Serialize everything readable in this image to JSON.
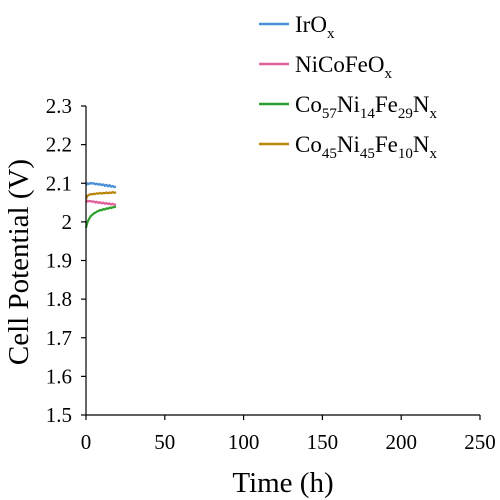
{
  "chart_data": {
    "type": "line",
    "title": "",
    "xlabel": "Time (h)",
    "ylabel": "Cell Potential (V)",
    "xlim": [
      0,
      250
    ],
    "ylim": [
      1.5,
      2.3
    ],
    "xticks": [
      0,
      50,
      100,
      150,
      200,
      250
    ],
    "yticks": [
      1.5,
      1.6,
      1.7,
      1.8,
      1.9,
      2.0,
      2.1,
      2.2,
      2.3
    ],
    "ytick_labels": [
      "1.5",
      "1.6",
      "1.7",
      "1.8",
      "1.9",
      "2",
      "2.1",
      "2.2",
      "2.3"
    ],
    "grid": false,
    "legend_position": "top-right",
    "series": [
      {
        "name": "IrOx",
        "name_parts": [
          {
            "t": "IrO"
          },
          {
            "t": "x",
            "sub": true
          }
        ],
        "color": "#4a90d9",
        "x": [
          0,
          1,
          2,
          3,
          4,
          5,
          6,
          7,
          8,
          9,
          10,
          11,
          12,
          13,
          14,
          15,
          16,
          17,
          18,
          19
        ],
        "y": [
          2.095,
          2.1,
          2.098,
          2.101,
          2.099,
          2.1,
          2.097,
          2.099,
          2.096,
          2.098,
          2.095,
          2.097,
          2.093,
          2.096,
          2.092,
          2.095,
          2.091,
          2.093,
          2.09,
          2.092
        ]
      },
      {
        "name": "NiCoFeOx",
        "name_parts": [
          {
            "t": "NiCoFeO"
          },
          {
            "t": "x",
            "sub": true
          }
        ],
        "color": "#e0609a",
        "x": [
          0,
          1,
          2,
          3,
          4,
          5,
          6,
          7,
          8,
          9,
          10,
          11,
          12,
          13,
          14,
          15,
          16,
          17,
          18,
          19
        ],
        "y": [
          2.05,
          2.055,
          2.053,
          2.054,
          2.052,
          2.053,
          2.05,
          2.052,
          2.049,
          2.051,
          2.048,
          2.05,
          2.047,
          2.049,
          2.046,
          2.048,
          2.045,
          2.047,
          2.044,
          2.046
        ]
      },
      {
        "name": "Co57Ni14Fe29Nx",
        "name_parts": [
          {
            "t": "Co"
          },
          {
            "t": "57",
            "sub": true
          },
          {
            "t": "Ni"
          },
          {
            "t": "14",
            "sub": true
          },
          {
            "t": "Fe"
          },
          {
            "t": "29",
            "sub": true
          },
          {
            "t": "N"
          },
          {
            "t": "x",
            "sub": true
          }
        ],
        "color": "#2ca02c",
        "x": [
          0,
          1,
          2,
          3,
          4,
          5,
          6,
          7,
          8,
          9,
          10,
          11,
          12,
          13,
          14,
          15,
          16,
          17,
          18,
          19
        ],
        "y": [
          1.985,
          2.0,
          2.008,
          2.015,
          2.018,
          2.022,
          2.024,
          2.027,
          2.028,
          2.031,
          2.03,
          2.033,
          2.032,
          2.035,
          2.034,
          2.037,
          2.036,
          2.038,
          2.038,
          2.04
        ]
      },
      {
        "name": "Co45Ni45Fe10Nx",
        "name_parts": [
          {
            "t": "Co"
          },
          {
            "t": "45",
            "sub": true
          },
          {
            "t": "Ni"
          },
          {
            "t": "45",
            "sub": true
          },
          {
            "t": "Fe"
          },
          {
            "t": "10",
            "sub": true
          },
          {
            "t": "N"
          },
          {
            "t": "x",
            "sub": true
          }
        ],
        "color": "#b8860b",
        "x": [
          0,
          1,
          2,
          3,
          4,
          5,
          6,
          7,
          8,
          9,
          10,
          11,
          12,
          13,
          14,
          15,
          16,
          17,
          18,
          19
        ],
        "y": [
          2.06,
          2.068,
          2.07,
          2.072,
          2.071,
          2.073,
          2.072,
          2.074,
          2.073,
          2.075,
          2.073,
          2.075,
          2.074,
          2.076,
          2.074,
          2.076,
          2.075,
          2.077,
          2.075,
          2.077
        ]
      }
    ]
  }
}
